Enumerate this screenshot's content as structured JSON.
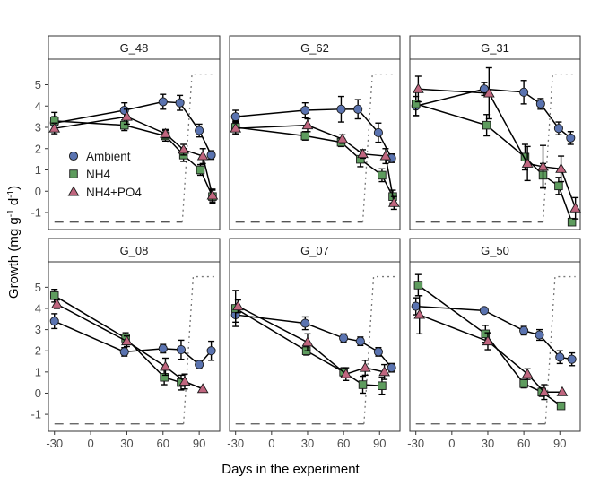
{
  "chart_data": {
    "type": "line",
    "xlabel": "Days in the experiment",
    "ylabel_main": "Growth (mg g",
    "ylabel_sup1": "-1",
    "ylabel_mid": " d",
    "ylabel_sup2": "-1",
    "ylabel_end": ")",
    "xlim": [
      -35,
      107
    ],
    "ylim": [
      -1.8,
      6.2
    ],
    "xticks": [
      -30,
      0,
      30,
      60,
      90
    ],
    "yticks": [
      -1,
      0,
      1,
      2,
      3,
      4,
      5
    ],
    "legend_placement": "inside first panel, lower-left",
    "series_styles": [
      {
        "name": "Ambient",
        "marker": "circle",
        "color": "#5a73b0"
      },
      {
        "name": "NH4",
        "marker": "square",
        "color": "#5e9c5e"
      },
      {
        "name": "NH4+PO4",
        "marker": "triangle",
        "color": "#c0667f"
      }
    ],
    "panels": [
      {
        "title": "G_48",
        "series": [
          {
            "name": "Ambient",
            "points": [
              [
                -30,
                3.2,
                0.3
              ],
              [
                28,
                3.8,
                0.35
              ],
              [
                60,
                4.2,
                0.35
              ],
              [
                74,
                4.15,
                0.35
              ],
              [
                90,
                2.85,
                0.3
              ],
              [
                100,
                1.7,
                0.2
              ]
            ]
          },
          {
            "name": "NH4",
            "points": [
              [
                -30,
                3.3,
                0.4
              ],
              [
                28,
                3.1,
                0.25
              ],
              [
                62,
                2.6,
                0.25
              ],
              [
                77,
                1.7,
                0.3
              ],
              [
                91,
                1.0,
                0.25
              ],
              [
                101,
                -0.25,
                0.3
              ]
            ]
          },
          {
            "name": "NH4+PO4",
            "points": [
              [
                -30,
                2.95,
                0.25
              ],
              [
                30,
                3.5,
                0.35
              ],
              [
                62,
                2.7,
                0.2
              ],
              [
                77,
                1.95,
                0.25
              ],
              [
                93,
                1.65,
                0.35
              ],
              [
                101,
                -0.2,
                0.3
              ]
            ]
          }
        ],
        "treatment_period": [
          [
            -30,
            76
          ],
          [
            76,
            103
          ]
        ],
        "treatment_level": [
          -1.45,
          5.5
        ]
      },
      {
        "title": "G_62",
        "series": [
          {
            "name": "Ambient",
            "points": [
              [
                -30,
                3.5,
                0.3
              ],
              [
                28,
                3.8,
                0.35
              ],
              [
                58,
                3.85,
                0.6
              ],
              [
                72,
                3.85,
                0.45
              ],
              [
                89,
                2.75,
                0.45
              ],
              [
                100,
                1.55,
                0.2
              ]
            ]
          },
          {
            "name": "NH4",
            "points": [
              [
                -30,
                3.0,
                0.3
              ],
              [
                28,
                2.6,
                0.2
              ],
              [
                58,
                2.3,
                0.2
              ],
              [
                74,
                1.5,
                0.35
              ],
              [
                92,
                0.75,
                0.3
              ],
              [
                101,
                -0.25,
                0.3
              ]
            ]
          },
          {
            "name": "NH4+PO4",
            "points": [
              [
                -30,
                2.95,
                0.3
              ],
              [
                30,
                3.1,
                0.3
              ],
              [
                59,
                2.45,
                0.2
              ],
              [
                76,
                1.75,
                0.2
              ],
              [
                95,
                1.65,
                0.35
              ],
              [
                102,
                -0.55,
                0.3
              ]
            ]
          }
        ],
        "treatment_period": [
          [
            -30,
            76
          ],
          [
            76,
            103
          ]
        ],
        "treatment_level": [
          -1.45,
          5.5
        ]
      },
      {
        "title": "G_31",
        "series": [
          {
            "name": "Ambient",
            "points": [
              [
                -30,
                4.0,
                0.45
              ],
              [
                27,
                4.8,
                0.3
              ],
              [
                60,
                4.65,
                0.55
              ],
              [
                74,
                4.1,
                0.25
              ],
              [
                89,
                2.95,
                0.3
              ],
              [
                99,
                2.5,
                0.3
              ]
            ]
          },
          {
            "name": "NH4",
            "points": [
              [
                -30,
                4.1,
                0.55
              ],
              [
                29,
                3.1,
                0.5
              ],
              [
                61,
                1.6,
                0.6
              ],
              [
                76,
                0.75,
                0.55
              ],
              [
                89,
                0.25,
                0.4
              ],
              [
                100,
                -1.45,
                0.15
              ]
            ]
          },
          {
            "name": "NH4+PO4",
            "points": [
              [
                -28,
                4.8,
                0.6
              ],
              [
                31,
                4.6,
                1.2
              ],
              [
                63,
                1.3,
                0.8
              ],
              [
                76,
                1.15,
                1.0
              ],
              [
                91,
                1.05,
                0.6
              ],
              [
                103,
                -0.8,
                0.5
              ]
            ]
          }
        ],
        "treatment_period": [
          [
            -30,
            76
          ],
          [
            76,
            103
          ]
        ],
        "treatment_level": [
          -1.45,
          5.5
        ]
      },
      {
        "title": "G_08",
        "series": [
          {
            "name": "Ambient",
            "points": [
              [
                -30,
                3.4,
                0.35
              ],
              [
                28,
                1.95,
                0.2
              ],
              [
                60,
                2.1,
                0.2
              ],
              [
                75,
                2.05,
                0.45
              ],
              [
                90,
                1.35,
                0.15
              ],
              [
                100,
                2.0,
                0.45
              ]
            ]
          },
          {
            "name": "NH4",
            "points": [
              [
                -30,
                4.6,
                0.3
              ],
              [
                29,
                2.6,
                0.25
              ],
              [
                61,
                0.75,
                0.35
              ],
              [
                75,
                0.5,
                0.35
              ]
            ]
          },
          {
            "name": "NH4+PO4",
            "points": [
              [
                -28,
                4.2,
                0.2
              ],
              [
                30,
                2.45,
                0.25
              ],
              [
                62,
                1.25,
                0.4
              ],
              [
                78,
                0.55,
                0.35
              ],
              [
                93,
                0.2,
                0.0
              ]
            ]
          }
        ],
        "treatment_period": [
          [
            -30,
            77
          ],
          [
            77,
            103
          ]
        ],
        "treatment_level": [
          -1.45,
          5.5
        ]
      },
      {
        "title": "G_07",
        "series": [
          {
            "name": "Ambient",
            "points": [
              [
                -30,
                3.7,
                0.35
              ],
              [
                28,
                3.3,
                0.3
              ],
              [
                60,
                2.6,
                0.2
              ],
              [
                74,
                2.45,
                0.2
              ],
              [
                89,
                1.95,
                0.2
              ],
              [
                100,
                1.2,
                0.2
              ]
            ]
          },
          {
            "name": "NH4",
            "points": [
              [
                -30,
                4.0,
                0.85
              ],
              [
                29,
                2.0,
                0.2
              ],
              [
                60,
                1.0,
                0.2
              ],
              [
                76,
                0.4,
                0.4
              ],
              [
                92,
                0.35,
                0.4
              ]
            ]
          },
          {
            "name": "NH4+PO4",
            "points": [
              [
                -28,
                4.1,
                0.3
              ],
              [
                30,
                2.4,
                0.4
              ],
              [
                62,
                0.9,
                0.3
              ],
              [
                78,
                1.2,
                0.35
              ],
              [
                94,
                1.0,
                0.35
              ]
            ]
          }
        ],
        "treatment_period": [
          [
            -30,
            77
          ],
          [
            77,
            103
          ]
        ],
        "treatment_level": [
          -1.45,
          5.5
        ]
      },
      {
        "title": "G_50",
        "series": [
          {
            "name": "Ambient",
            "points": [
              [
                -30,
                4.1,
                0.4
              ],
              [
                27,
                3.9,
                0.1
              ],
              [
                60,
                2.95,
                0.2
              ],
              [
                73,
                2.75,
                0.25
              ],
              [
                90,
                1.7,
                0.3
              ],
              [
                100,
                1.6,
                0.3
              ]
            ]
          },
          {
            "name": "NH4",
            "points": [
              [
                -28,
                5.1,
                0.5
              ],
              [
                28,
                2.8,
                0.4
              ],
              [
                60,
                0.45,
                0.2
              ],
              [
                75,
                0.05,
                0.2
              ],
              [
                91,
                -0.6,
                0.1
              ]
            ]
          },
          {
            "name": "NH4+PO4",
            "points": [
              [
                -27,
                3.7,
                0.9
              ],
              [
                30,
                2.45,
                0.4
              ],
              [
                63,
                0.9,
                0.25
              ],
              [
                77,
                0.05,
                0.35
              ],
              [
                92,
                0.05,
                0.0
              ]
            ]
          }
        ],
        "treatment_period": [
          [
            -30,
            78
          ],
          [
            78,
            103
          ]
        ],
        "treatment_level": [
          -1.45,
          5.5
        ]
      }
    ]
  }
}
